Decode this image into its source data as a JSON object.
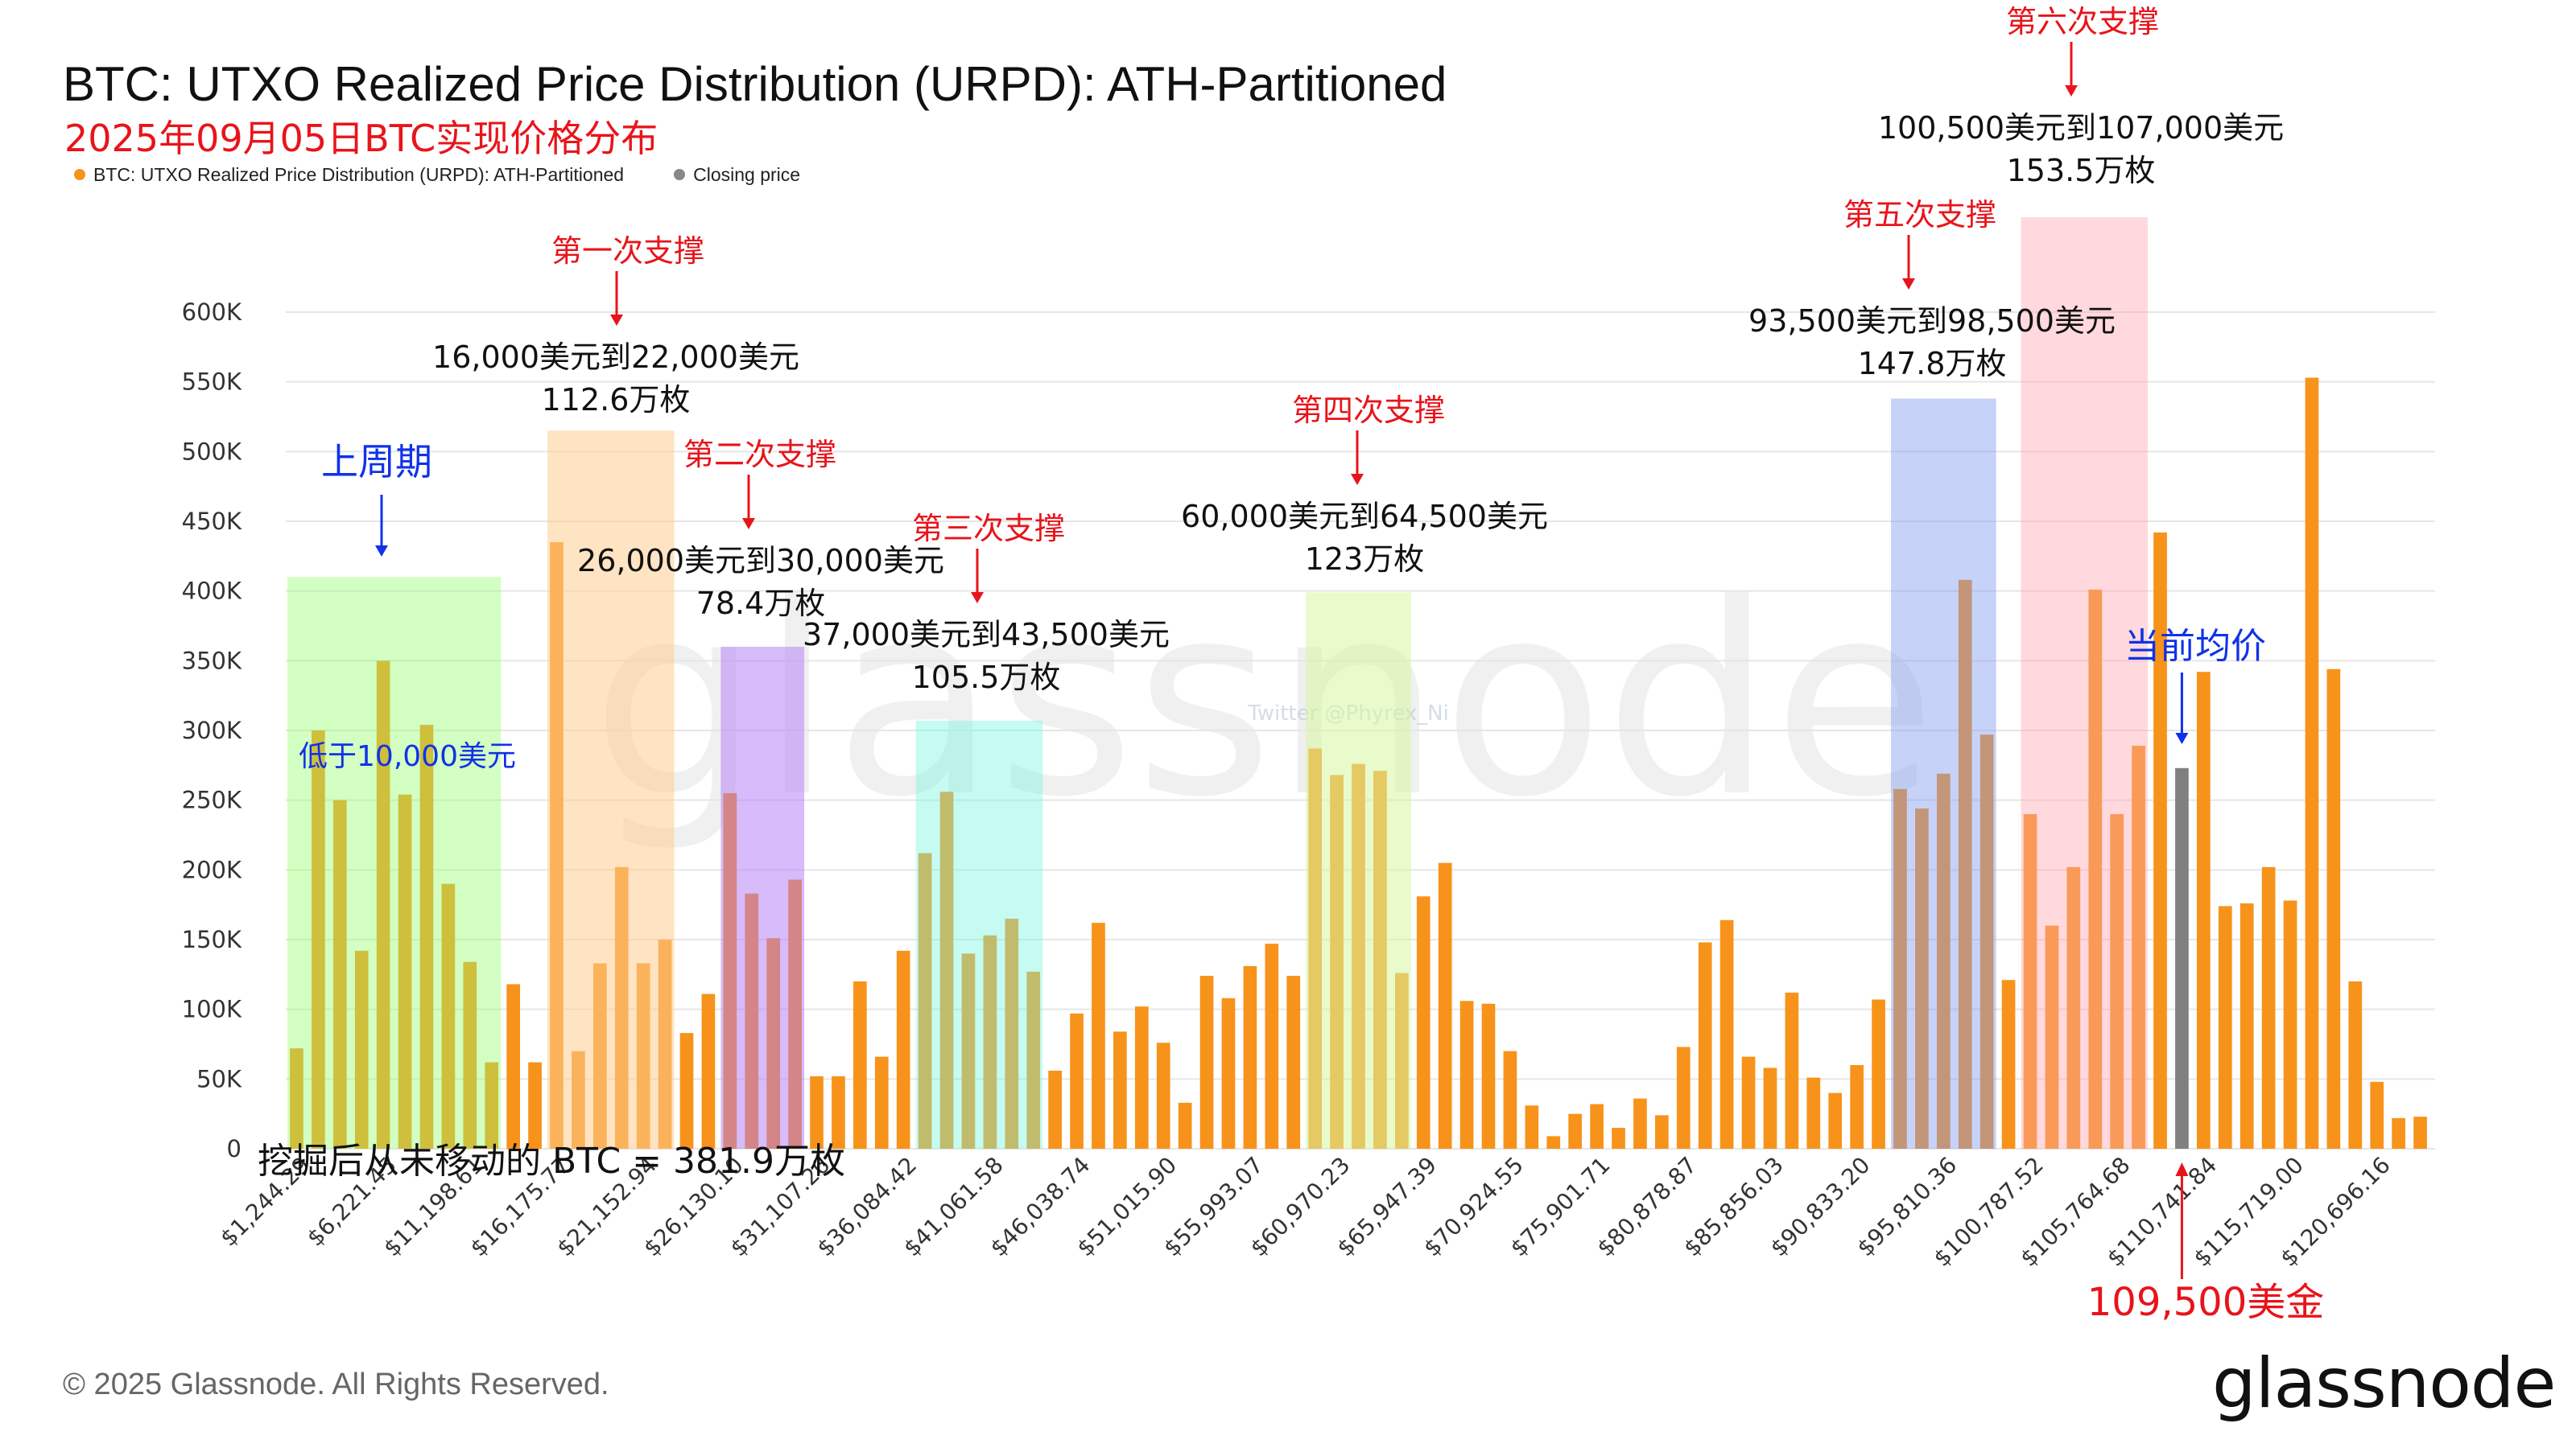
{
  "title": "BTC: UTXO Realized Price Distribution (URPD): ATH-Partitioned",
  "subtitle": "2025年09月05日BTC实现价格分布",
  "legend": [
    {
      "label": "BTC: UTXO Realized Price Distribution (URPD): ATH-Partitioned",
      "color": "#f7931a"
    },
    {
      "label": "Closing price",
      "color": "#888888"
    }
  ],
  "footer": "© 2025 Glassnode. All Rights Reserved.",
  "logo": "glassnode",
  "watermark": "glassnode",
  "watermark_small": "Twitter @Phyrex_Ni",
  "colors": {
    "bar": "#f7931a",
    "closing": "#808080",
    "grid": "#e6e6e6",
    "red": "#e8141b",
    "blue": "#1032e8"
  },
  "chart_data": {
    "type": "bar",
    "ylim": [
      0,
      600000
    ],
    "yticks": [
      0,
      50000,
      100000,
      150000,
      200000,
      250000,
      300000,
      350000,
      400000,
      450000,
      500000,
      550000,
      600000
    ],
    "ytick_labels": [
      "0",
      "50K",
      "100K",
      "150K",
      "200K",
      "250K",
      "300K",
      "350K",
      "400K",
      "450K",
      "500K",
      "550K",
      "600K"
    ],
    "x_tick_labels": [
      "$1,244.29",
      "$6,221.45",
      "$11,198.61",
      "$16,175.77",
      "$21,152.94",
      "$26,130.10",
      "$31,107.26",
      "$36,084.42",
      "$41,061.58",
      "$46,038.74",
      "$51,015.90",
      "$55,993.07",
      "$60,970.23",
      "$65,947.39",
      "$70,924.55",
      "$75,901.71",
      "$80,878.87",
      "$85,856.03",
      "$90,833.20",
      "$95,810.36",
      "$100,787.52",
      "$105,764.68",
      "$110,741.84",
      "$115,719.00",
      "$120,696.16"
    ],
    "values": [
      72000,
      300000,
      250000,
      142000,
      350000,
      254000,
      304000,
      190000,
      134000,
      62000,
      118000,
      62000,
      435000,
      70000,
      133000,
      202000,
      133000,
      150000,
      83000,
      111000,
      255000,
      183000,
      151000,
      193000,
      52000,
      52000,
      120000,
      66000,
      142000,
      212000,
      256000,
      140000,
      153000,
      165000,
      127000,
      56000,
      97000,
      162000,
      84000,
      102000,
      76000,
      33000,
      124000,
      108000,
      131000,
      147000,
      124000,
      287000,
      268000,
      276000,
      271000,
      126000,
      181000,
      205000,
      106000,
      104000,
      70000,
      31000,
      9000,
      25000,
      32000,
      15000,
      36000,
      24000,
      73000,
      148000,
      164000,
      66000,
      58000,
      112000,
      51000,
      40000,
      60000,
      107000,
      258000,
      244000,
      269000,
      408000,
      297000,
      121000,
      240000,
      160000,
      202000,
      401000,
      240000,
      289000,
      442000,
      273000,
      342000,
      174000,
      176000,
      202000,
      178000,
      553000,
      344000,
      120000,
      48000,
      22000,
      23000
    ],
    "closing_price_index": 87
  },
  "regions": [
    {
      "name": "上周期",
      "label_lines": [
        "低于10,000美元"
      ],
      "i0": 0,
      "i1": 9,
      "top": 410000,
      "color": "rgba(150,255,110,0.42)"
    },
    {
      "name": "第一次支撑",
      "label_lines": [
        "16,000美元到22,000美元",
        "112.6万枚"
      ],
      "i0": 12,
      "i1": 17,
      "top": 515000,
      "color": "rgba(255,205,145,0.55)"
    },
    {
      "name": "第二次支撑",
      "label_lines": [
        "26,000美元到30,000美元",
        "78.4万枚"
      ],
      "i0": 20,
      "i1": 23,
      "top": 360000,
      "color": "rgba(175,120,245,0.5)"
    },
    {
      "name": "第三次支撑",
      "label_lines": [
        "37,000美元到43,500美元",
        "105.5万枚"
      ],
      "i0": 29,
      "i1": 34,
      "top": 307000,
      "color": "rgba(120,245,225,0.42)"
    },
    {
      "name": "第四次支撑",
      "label_lines": [
        "60,000美元到64,500美元",
        "123万枚"
      ],
      "i0": 47,
      "i1": 51,
      "top": 399000,
      "color": "rgba(215,245,160,0.55)"
    },
    {
      "name": "第五次支撑",
      "label_lines": [
        "93,500美元到98,500美元",
        "147.8万枚"
      ],
      "i0": 74,
      "i1": 78,
      "top": 538000,
      "color": "rgba(130,155,240,0.45)"
    },
    {
      "name": "第六次支撑",
      "label_lines": [
        "100,500美元到107,000美元",
        "153.5万枚"
      ],
      "i0": 80,
      "i1": 85,
      "top": 668000,
      "color": "rgba(255,165,175,0.42)"
    }
  ],
  "annotations": {
    "current_avg": "当前均价",
    "closing_price_text": "109,500美金",
    "unmoved_text": "挖掘后从未移动的 BTC = 381.9万枚"
  }
}
